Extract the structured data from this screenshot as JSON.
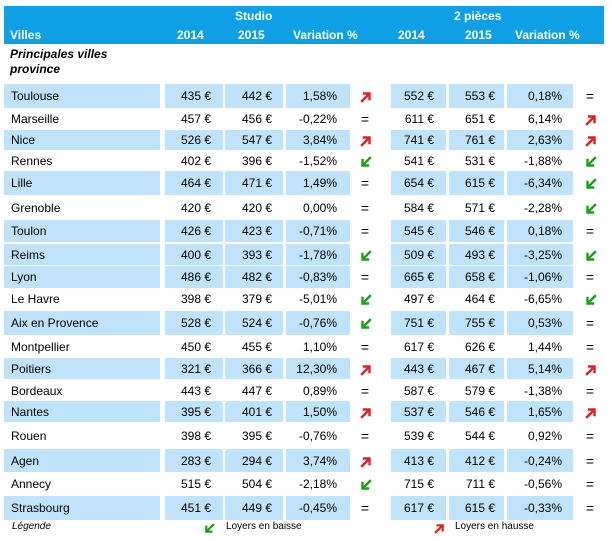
{
  "header": {
    "group_studio": "Studio",
    "group_2pieces": "2 pièces",
    "col_villes": "Villes",
    "col_2014": "2014",
    "col_2015": "2015",
    "col_variation": "Variation %"
  },
  "subtitle": "Principales villes province",
  "colors": {
    "header_bg": "#0f9fe6",
    "band_bg": "#bfe3fb",
    "arrow_down": "#1aa01a",
    "arrow_up": "#e02020"
  },
  "rows": [
    {
      "city": "Toulouse",
      "s2014": "435 €",
      "s2015": "442 €",
      "svar": "1,58%",
      "strend": "up",
      "p2014": "552 €",
      "p2015": "553 €",
      "pvar": "0,18%",
      "ptrend": "eq"
    },
    {
      "city": "Marseille",
      "s2014": "457 €",
      "s2015": "456 €",
      "svar": "-0,22%",
      "strend": "eq",
      "p2014": "611 €",
      "p2015": "651 €",
      "pvar": "6,14%",
      "ptrend": "up"
    },
    {
      "city": "Nice",
      "s2014": "526 €",
      "s2015": "547 €",
      "svar": "3,84%",
      "strend": "up",
      "p2014": "741 €",
      "p2015": "761 €",
      "pvar": "2,63%",
      "ptrend": "up"
    },
    {
      "city": "Rennes",
      "s2014": "402 €",
      "s2015": "396 €",
      "svar": "-1,52%",
      "strend": "down",
      "p2014": "541 €",
      "p2015": "531 €",
      "pvar": "-1,88%",
      "ptrend": "down"
    },
    {
      "city": "Lille",
      "s2014": "464 €",
      "s2015": "471 €",
      "svar": "1,49%",
      "strend": "eq",
      "p2014": "654 €",
      "p2015": "615 €",
      "pvar": "-6,34%",
      "ptrend": "down"
    },
    {
      "city": "Grenoble",
      "s2014": "420 €",
      "s2015": "420 €",
      "svar": "0,00%",
      "strend": "eq",
      "p2014": "584 €",
      "p2015": "571 €",
      "pvar": "-2,28%",
      "ptrend": "down"
    },
    {
      "city": "Toulon",
      "s2014": "426 €",
      "s2015": "423 €",
      "svar": "-0,71%",
      "strend": "eq",
      "p2014": "545 €",
      "p2015": "546 €",
      "pvar": "0,18%",
      "ptrend": "eq"
    },
    {
      "city": "Reims",
      "s2014": "400 €",
      "s2015": "393 €",
      "svar": "-1,78%",
      "strend": "down",
      "p2014": "509 €",
      "p2015": "493 €",
      "pvar": "-3,25%",
      "ptrend": "down"
    },
    {
      "city": "Lyon",
      "s2014": "486 €",
      "s2015": "482 €",
      "svar": "-0,83%",
      "strend": "eq",
      "p2014": "665 €",
      "p2015": "658 €",
      "pvar": "-1,06%",
      "ptrend": "eq"
    },
    {
      "city": "Le Havre",
      "s2014": "398 €",
      "s2015": "379 €",
      "svar": "-5,01%",
      "strend": "down",
      "p2014": "497 €",
      "p2015": "464 €",
      "pvar": "-6,65%",
      "ptrend": "down"
    },
    {
      "city": "Aix en Provence",
      "s2014": "528 €",
      "s2015": "524 €",
      "svar": "-0,76%",
      "strend": "down",
      "p2014": "751 €",
      "p2015": "755 €",
      "pvar": "0,53%",
      "ptrend": "eq"
    },
    {
      "city": "Montpellier",
      "s2014": "450 €",
      "s2015": "455 €",
      "svar": "1,10%",
      "strend": "eq",
      "p2014": "617 €",
      "p2015": "626 €",
      "pvar": "1,44%",
      "ptrend": "eq"
    },
    {
      "city": "Poitiers",
      "s2014": "321 €",
      "s2015": "366 €",
      "svar": "12,30%",
      "strend": "up",
      "p2014": "443 €",
      "p2015": "467 €",
      "pvar": "5,14%",
      "ptrend": "up"
    },
    {
      "city": "Bordeaux",
      "s2014": "443 €",
      "s2015": "447 €",
      "svar": "0,89%",
      "strend": "eq",
      "p2014": "587 €",
      "p2015": "579 €",
      "pvar": "-1,38%",
      "ptrend": "eq"
    },
    {
      "city": "Nantes",
      "s2014": "395 €",
      "s2015": "401 €",
      "svar": "1,50%",
      "strend": "up",
      "p2014": "537 €",
      "p2015": "546 €",
      "pvar": "1,65%",
      "ptrend": "up"
    },
    {
      "city": "Rouen",
      "s2014": "398 €",
      "s2015": "395 €",
      "svar": "-0,76%",
      "strend": "eq",
      "p2014": "539 €",
      "p2015": "544 €",
      "pvar": "0,92%",
      "ptrend": "eq"
    },
    {
      "city": "Agen",
      "s2014": "283 €",
      "s2015": "294 €",
      "svar": "3,74%",
      "strend": "up",
      "p2014": "413 €",
      "p2015": "412 €",
      "pvar": "-0,24%",
      "ptrend": "eq"
    },
    {
      "city": "Annecy",
      "s2014": "515 €",
      "s2015": "504 €",
      "svar": "-2,18%",
      "strend": "down",
      "p2014": "715 €",
      "p2015": "711 €",
      "pvar": "-0,56%",
      "ptrend": "eq"
    },
    {
      "city": "Strasbourg",
      "s2014": "451 €",
      "s2015": "449 €",
      "svar": "-0,45%",
      "strend": "eq",
      "p2014": "617 €",
      "p2015": "615 €",
      "pvar": "-0,33%",
      "ptrend": "eq"
    }
  ],
  "legend": {
    "title": "Légende",
    "down_label": "Loyers en baisse",
    "up_label": "Loyers en hausse"
  }
}
